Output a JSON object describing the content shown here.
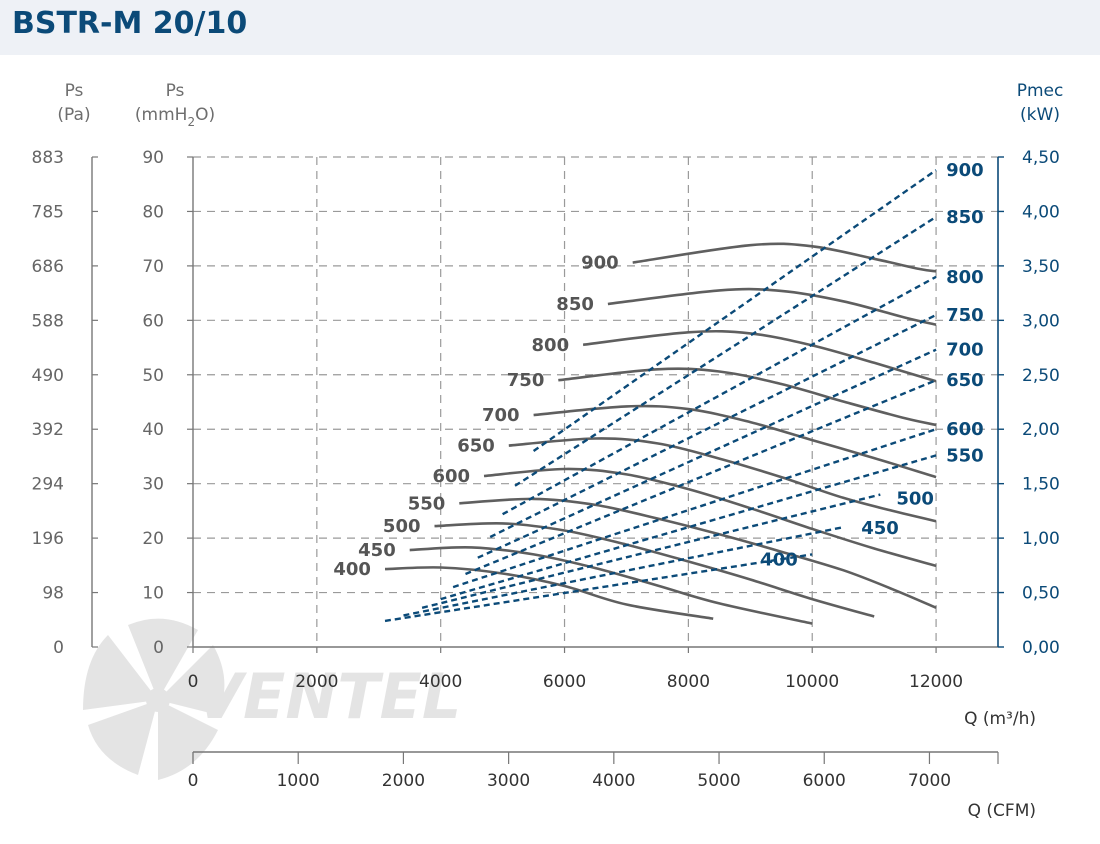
{
  "title": "BSTR-M 20/10",
  "chart_data": {
    "type": "line",
    "title": "BSTR-M 20/10",
    "xlabel": "Q (m³/h)",
    "xlabel_secondary": "Q (CFM)",
    "y_axes": {
      "pa": {
        "label1": "Ps",
        "label2": "(Pa)",
        "ticks": [
          "0",
          "98",
          "196",
          "294",
          "392",
          "490",
          "588",
          "686",
          "785",
          "883"
        ]
      },
      "mmh2o": {
        "label1": "Ps",
        "label2_a": "(mmH",
        "label2_sub": "2",
        "label2_b": "O)",
        "ylim": [
          0,
          90
        ],
        "ticks": [
          "0",
          "10",
          "20",
          "30",
          "40",
          "50",
          "60",
          "70",
          "80",
          "90"
        ]
      },
      "power": {
        "label1": "Pmec",
        "label2": "(kW)",
        "ylim": [
          0,
          4.5
        ],
        "ticks": [
          "0,00",
          "0,50",
          "1,00",
          "1,50",
          "2,00",
          "2,50",
          "3,00",
          "3,50",
          "4,00",
          "4,50"
        ]
      }
    },
    "xlim": [
      0,
      13000
    ],
    "x_ticks": [
      "0",
      "2000",
      "4000",
      "6000",
      "8000",
      "10000",
      "12000"
    ],
    "cfm_ticks": [
      "0",
      "1000",
      "2000",
      "3000",
      "4000",
      "5000",
      "6000",
      "7000"
    ],
    "grid": true,
    "pressure_curves": [
      {
        "name": "400",
        "x": [
          3100,
          4000,
          5000,
          6000,
          7000,
          8400
        ],
        "y": [
          14.3,
          14.6,
          13.5,
          11.2,
          7.8,
          5.2
        ]
      },
      {
        "name": "450",
        "x": [
          3500,
          4500,
          5500,
          6500,
          7500,
          8500,
          10000
        ],
        "y": [
          17.8,
          18.3,
          17.0,
          14.5,
          11.3,
          8.0,
          4.3
        ]
      },
      {
        "name": "500",
        "x": [
          3900,
          5000,
          6000,
          7000,
          8000,
          9000,
          10000,
          11000
        ],
        "y": [
          22.2,
          22.7,
          21.4,
          18.8,
          15.7,
          12.4,
          8.8,
          5.6
        ]
      },
      {
        "name": "550",
        "x": [
          4300,
          5500,
          6500,
          7500,
          8500,
          9500,
          10500,
          11300,
          12000
        ],
        "y": [
          26.4,
          27.2,
          26.1,
          23.6,
          20.7,
          17.5,
          14.1,
          10.6,
          7.2
        ]
      },
      {
        "name": "600",
        "x": [
          4700,
          6000,
          7000,
          8000,
          9000,
          10000,
          11000,
          12000
        ],
        "y": [
          31.4,
          32.7,
          31.7,
          29.0,
          25.5,
          21.7,
          18.1,
          14.9
        ]
      },
      {
        "name": "650",
        "x": [
          5100,
          6500,
          7500,
          8500,
          9500,
          10500,
          11300,
          12000
        ],
        "y": [
          37.0,
          38.3,
          37.4,
          34.6,
          31.2,
          27.4,
          25.0,
          23.1
        ]
      },
      {
        "name": "700",
        "x": [
          5500,
          7000,
          8000,
          9000,
          10000,
          11000,
          12000
        ],
        "y": [
          42.6,
          44.2,
          43.7,
          41.3,
          38.0,
          34.7,
          31.2
        ]
      },
      {
        "name": "750",
        "x": [
          5900,
          7500,
          8500,
          9500,
          10500,
          11500,
          12000
        ],
        "y": [
          49.0,
          51.0,
          50.6,
          48.3,
          45.1,
          42.0,
          40.8
        ]
      },
      {
        "name": "800",
        "x": [
          6300,
          8000,
          9000,
          10000,
          11000,
          12000
        ],
        "y": [
          55.5,
          57.8,
          57.6,
          55.4,
          52.2,
          48.8
        ]
      },
      {
        "name": "850",
        "x": [
          6700,
          8500,
          9500,
          10500,
          11500,
          12000
        ],
        "y": [
          63.0,
          65.5,
          65.4,
          63.5,
          60.5,
          59.2
        ]
      },
      {
        "name": "900",
        "x": [
          7100,
          9000,
          10000,
          11000,
          11700,
          12000
        ],
        "y": [
          70.6,
          73.8,
          73.6,
          71.3,
          69.5,
          69.0
        ]
      }
    ],
    "power_curves": [
      {
        "name": "400",
        "x": [
          3100,
          10000
        ],
        "y": [
          0.24,
          0.85
        ]
      },
      {
        "name": "450",
        "x": [
          3400,
          10500
        ],
        "y": [
          0.29,
          1.1
        ]
      },
      {
        "name": "500",
        "x": [
          3700,
          11100
        ],
        "y": [
          0.36,
          1.4
        ]
      },
      {
        "name": "550",
        "x": [
          4000,
          12000
        ],
        "y": [
          0.44,
          1.76
        ]
      },
      {
        "name": "600",
        "x": [
          4200,
          12000
        ],
        "y": [
          0.55,
          2.0
        ]
      },
      {
        "name": "650",
        "x": [
          4400,
          12000
        ],
        "y": [
          0.67,
          2.45
        ]
      },
      {
        "name": "700",
        "x": [
          4600,
          12000
        ],
        "y": [
          0.82,
          2.73
        ]
      },
      {
        "name": "750",
        "x": [
          4800,
          12000
        ],
        "y": [
          1.01,
          3.05
        ]
      },
      {
        "name": "800",
        "x": [
          5000,
          12000
        ],
        "y": [
          1.22,
          3.4
        ]
      },
      {
        "name": "850",
        "x": [
          5200,
          12000
        ],
        "y": [
          1.48,
          3.95
        ]
      },
      {
        "name": "900",
        "x": [
          5500,
          12000
        ],
        "y": [
          1.8,
          4.38
        ]
      }
    ],
    "watermark": "VENTEL"
  }
}
